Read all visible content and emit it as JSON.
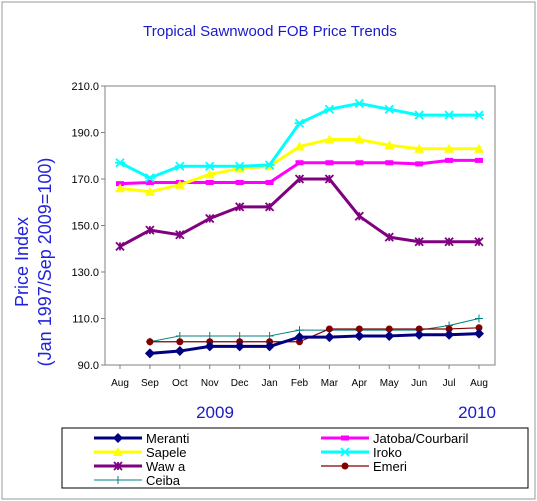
{
  "chart_data": {
    "type": "line",
    "title": "Tropical Sawnwood FOB Price Trends",
    "ylabel_line1": "Price Index",
    "ylabel_line2": "(Jan 1997/Sep 2009=100)",
    "categories": [
      "Aug",
      "Sep",
      "Oct",
      "Nov",
      "Dec",
      "Jan",
      "Feb",
      "Mar",
      "Apr",
      "May",
      "Jun",
      "Jul",
      "Aug"
    ],
    "year_labels": [
      "2009",
      "2010"
    ],
    "ylim": [
      90,
      210
    ],
    "yticks": [
      "90.0",
      "110.0",
      "130.0",
      "150.0",
      "170.0",
      "190.0",
      "210.0"
    ],
    "grid": false,
    "legend_position": "bottom",
    "colors": {
      "title": "#1a1acc",
      "ylabel": "#2222dd",
      "year": "#1a1acc",
      "border": "#999999",
      "plot_border": "#808080"
    },
    "series": [
      {
        "name": "Meranti",
        "color": "#000080",
        "marker": "diamond",
        "values": [
          null,
          95,
          96,
          98,
          98,
          98,
          102,
          102,
          102.5,
          102.5,
          103,
          103,
          103.5
        ]
      },
      {
        "name": "Jatoba/Courbaril",
        "color": "#ff00ff",
        "marker": "square",
        "values": [
          168,
          168.5,
          168.5,
          168.5,
          168.5,
          168.5,
          177,
          177,
          177,
          177,
          176.5,
          178,
          178
        ]
      },
      {
        "name": "Sapele",
        "color": "#ffff00",
        "marker": "triangle",
        "values": [
          166,
          164.5,
          167.5,
          172,
          174.5,
          175.5,
          184,
          187,
          187,
          184.5,
          183,
          183,
          183
        ]
      },
      {
        "name": "Iroko",
        "color": "#00ffff",
        "marker": "star",
        "values": [
          177,
          170.5,
          175.5,
          175.5,
          175.5,
          176,
          194,
          200,
          202.5,
          200,
          197.5,
          197.5,
          197.5
        ]
      },
      {
        "name": "Waw a",
        "color": "#800080",
        "marker": "x",
        "values": [
          141,
          148,
          146,
          153,
          158,
          158,
          170,
          170,
          154,
          145,
          143,
          143,
          143
        ]
      },
      {
        "name": "Emeri",
        "color": "#800000",
        "marker": "circle",
        "values": [
          null,
          100,
          100,
          100,
          100,
          100,
          100,
          105.5,
          105.5,
          105.5,
          105.5,
          105.5,
          106
        ]
      },
      {
        "name": "Ceiba",
        "color": "#008080",
        "marker": "plus",
        "values": [
          null,
          100,
          102.5,
          102.5,
          102.5,
          102.5,
          105,
          105,
          105,
          105,
          105,
          107,
          110
        ]
      }
    ]
  }
}
